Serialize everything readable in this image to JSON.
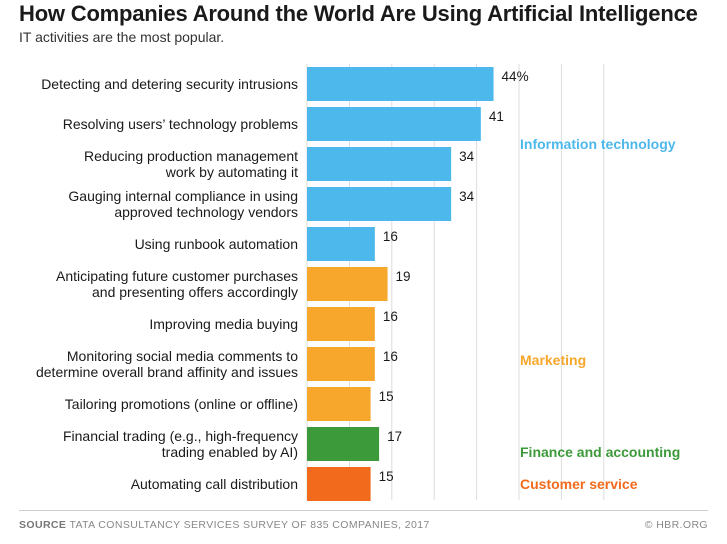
{
  "header": {
    "title": "How Companies Around the World Are Using Artificial Intelligence",
    "subtitle": "IT activities are the most popular."
  },
  "footer": {
    "source_prefix": "SOURCE",
    "source_text": "TATA CONSULTANCY SERVICES SURVEY OF 835 COMPANIES, 2017",
    "credit": "© HBR.ORG"
  },
  "colors": {
    "information_technology": "#4db8ec",
    "marketing": "#f7a72b",
    "finance_and_accounting": "#3c9a3a",
    "customer_service": "#f26a1b",
    "gridline": "#dcdcdc"
  },
  "chart_data": {
    "type": "bar",
    "orientation": "horizontal",
    "title": "How Companies Around the World Are Using Artificial Intelligence",
    "subtitle": "IT activities are the most popular.",
    "xlim": [
      0,
      50
    ],
    "grid": true,
    "categories": [
      [
        "Detecting and detering security intrusions"
      ],
      [
        "Resolving users’ technology problems"
      ],
      [
        "Reducing production management",
        "work by automating it"
      ],
      [
        "Gauging internal compliance in using",
        "approved technology vendors"
      ],
      [
        "Using runbook automation"
      ],
      [
        "Anticipating future customer purchases",
        "and presenting offers accordingly"
      ],
      [
        "Improving media buying"
      ],
      [
        "Monitoring social media comments to",
        "determine overall brand affinity and issues"
      ],
      [
        "Tailoring promotions (online or offline)"
      ],
      [
        "Financial trading (e.g., high-frequency",
        "trading enabled by AI)"
      ],
      [
        "Automating call distribution"
      ]
    ],
    "values": [
      44,
      41,
      34,
      34,
      16,
      19,
      16,
      16,
      15,
      17,
      15
    ],
    "value_labels": [
      "44%",
      "41",
      "34",
      "34",
      "16",
      "19",
      "16",
      "16",
      "15",
      "17",
      "15"
    ],
    "groups": [
      "information_technology",
      "information_technology",
      "information_technology",
      "information_technology",
      "information_technology",
      "marketing",
      "marketing",
      "marketing",
      "marketing",
      "finance_and_accounting",
      "customer_service"
    ],
    "group_labels": [
      {
        "key": "information_technology",
        "text": "Information technology",
        "row": 1.5
      },
      {
        "key": "marketing",
        "text": "Marketing",
        "row": 6.9
      },
      {
        "key": "finance_and_accounting",
        "text": "Finance and accounting",
        "row": 9.2
      },
      {
        "key": "customer_service",
        "text": "Customer service",
        "row": 10
      }
    ]
  }
}
